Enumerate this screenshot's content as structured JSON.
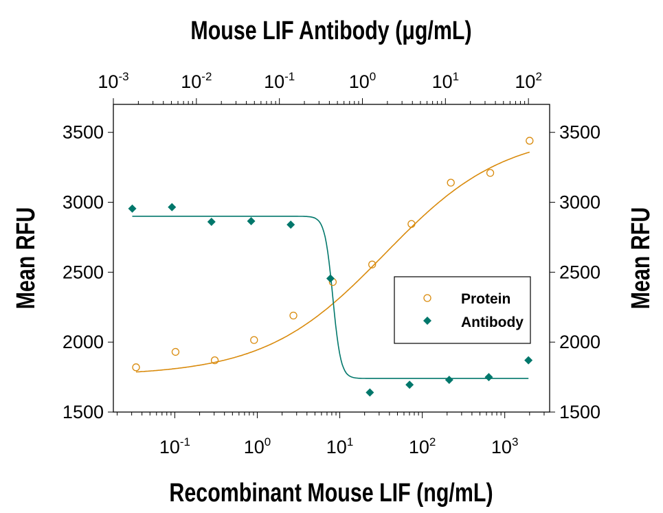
{
  "chart_data": {
    "type": "scatter",
    "title": "",
    "xlabel": "Recombinant Mouse LIF (ng/mL)",
    "x2label": "Mouse LIF Antibody (μg/mL)",
    "ylabel": "Mean RFU",
    "y2label": "Mean RFU",
    "xscale": "log",
    "xlim": [
      0.018,
      3500
    ],
    "x2lim": [
      0.001,
      180
    ],
    "ylim": [
      1500,
      3700
    ],
    "yticks": [
      1500,
      2000,
      2500,
      3000,
      3500
    ],
    "xtick_exponents": [
      -1,
      0,
      1,
      2,
      3
    ],
    "x2tick_exponents": [
      -3,
      -2,
      -1,
      0,
      1,
      2
    ],
    "grid": false,
    "legend_position": "center-right",
    "colors": {
      "protein": "#D98A0B",
      "antibody": "#00776B"
    },
    "series": [
      {
        "name": "Protein",
        "axis": "bottom",
        "marker": "open-circle",
        "x": [
          0.0339,
          0.102,
          0.305,
          0.914,
          2.74,
          8.23,
          24.7,
          74,
          222,
          667,
          2000
        ],
        "y": [
          1820,
          1930,
          1870,
          2015,
          2190,
          2430,
          2555,
          2845,
          3140,
          3210,
          3440
        ],
        "fit": {
          "bottom": 1760,
          "top": 3500,
          "ec50": 35,
          "hill": 0.6
        }
      },
      {
        "name": "Antibody",
        "axis": "top",
        "marker": "filled-diamond",
        "x": [
          0.00169,
          0.00508,
          0.0152,
          0.0457,
          0.137,
          0.412,
          1.23,
          3.7,
          11.1,
          33.3,
          100
        ],
        "y": [
          2955,
          2965,
          2860,
          2865,
          2840,
          2455,
          1640,
          1695,
          1730,
          1750,
          1870
        ],
        "fit": {
          "bottom": 1740,
          "top": 2900,
          "ec50": 0.44,
          "hill": -9
        }
      }
    ]
  }
}
